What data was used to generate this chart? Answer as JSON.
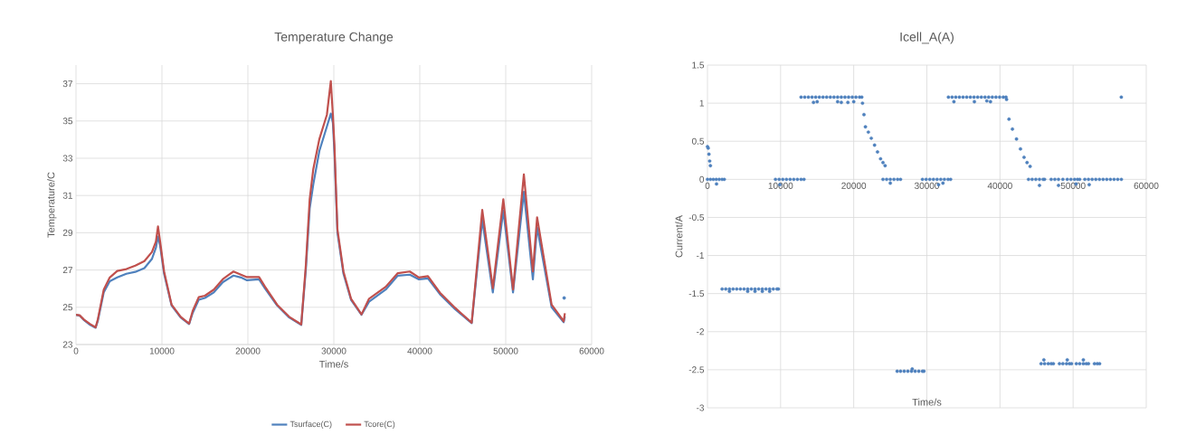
{
  "chart_data": [
    {
      "type": "line",
      "title": "Temperature Change",
      "xlabel": "Time/s",
      "ylabel": "Temperature/C",
      "xlim": [
        0,
        60000
      ],
      "ylim": [
        23,
        38
      ],
      "xticks": [
        0,
        10000,
        20000,
        30000,
        40000,
        50000,
        60000
      ],
      "yticks": [
        23,
        25,
        27,
        29,
        31,
        33,
        35,
        37
      ],
      "grid": true,
      "legend": "bottom",
      "marker": "none",
      "line_style": "solid",
      "series": [
        {
          "name": "Tsurface(C)",
          "color": "#4f81bd",
          "x": [
            0,
            420,
            950,
            1650,
            2280,
            2530,
            3230,
            3930,
            4800,
            5860,
            6900,
            7960,
            8840,
            9300,
            9540,
            9790,
            10250,
            11120,
            12180,
            13160,
            13580,
            14280,
            15000,
            16040,
            17090,
            18320,
            19190,
            19890,
            21300,
            22000,
            23400,
            24810,
            26210,
            26740,
            27190,
            27610,
            28320,
            29190,
            29650,
            29890,
            30070,
            30420,
            31120,
            32000,
            33220,
            34100,
            36040,
            37440,
            38840,
            39900,
            40950,
            42350,
            44110,
            46040,
            47270,
            48500,
            49720,
            50850,
            52110,
            53160,
            53650,
            55340,
            56740,
            56880
          ],
          "values": [
            24.6,
            24.55,
            24.3,
            24.05,
            23.9,
            24.25,
            25.8,
            26.4,
            26.6,
            26.8,
            26.9,
            27.1,
            27.6,
            28.2,
            28.8,
            28.3,
            26.8,
            25.1,
            24.45,
            24.1,
            24.7,
            25.4,
            25.5,
            25.8,
            26.35,
            26.7,
            26.6,
            26.45,
            26.5,
            26.0,
            25.1,
            24.45,
            24.05,
            27.0,
            30.3,
            31.6,
            33.4,
            34.7,
            35.4,
            34.9,
            33.3,
            29.0,
            26.8,
            25.4,
            24.6,
            25.3,
            25.95,
            26.7,
            26.75,
            26.5,
            26.55,
            25.7,
            24.9,
            24.15,
            29.7,
            25.8,
            30.2,
            25.8,
            31.2,
            26.5,
            29.3,
            25.0,
            24.2,
            24.5
          ]
        },
        {
          "name": "Tcore(C)",
          "color": "#c0504d",
          "x": [
            0,
            420,
            950,
            1650,
            2280,
            2530,
            3230,
            3930,
            4800,
            5860,
            6900,
            7960,
            8840,
            9300,
            9540,
            9790,
            10250,
            11120,
            12180,
            13160,
            13580,
            14280,
            15000,
            16040,
            17090,
            18320,
            19190,
            19890,
            21300,
            22000,
            23400,
            24810,
            26210,
            26740,
            27190,
            27610,
            28320,
            29190,
            29650,
            29890,
            30070,
            30420,
            31120,
            32000,
            33220,
            34100,
            36040,
            37440,
            38840,
            39900,
            40950,
            42350,
            44110,
            46040,
            47270,
            48500,
            49720,
            50850,
            52110,
            53160,
            53650,
            55340,
            56740,
            56880
          ],
          "values": [
            24.6,
            24.57,
            24.33,
            24.1,
            23.92,
            24.33,
            25.95,
            26.6,
            26.95,
            27.05,
            27.24,
            27.48,
            27.97,
            28.53,
            29.34,
            28.53,
            26.92,
            25.14,
            24.49,
            24.12,
            24.81,
            25.54,
            25.62,
            25.95,
            26.51,
            26.92,
            26.75,
            26.62,
            26.62,
            26.1,
            25.14,
            24.49,
            24.08,
            27.24,
            30.8,
            32.42,
            34.04,
            35.33,
            37.14,
            35.33,
            33.71,
            29.18,
            26.92,
            25.46,
            24.62,
            25.46,
            26.1,
            26.83,
            26.92,
            26.6,
            26.67,
            25.78,
            24.97,
            24.17,
            30.23,
            26.03,
            30.8,
            25.95,
            32.13,
            26.92,
            29.83,
            25.14,
            24.25,
            24.68
          ]
        },
        {
          "type": "scatter",
          "color": "#4f81bd",
          "x": [
            56800
          ],
          "values": [
            25.5
          ]
        }
      ]
    },
    {
      "type": "scatter",
      "title": "Icell_A(A)",
      "xlabel": "Time/s",
      "ylabel": "Current/A",
      "xlim": [
        0,
        60000
      ],
      "ylim": [
        -3,
        1.5
      ],
      "xticks": [
        0,
        10000,
        20000,
        30000,
        40000,
        50000,
        60000
      ],
      "yticks": [
        -3,
        -2.5,
        -2,
        -1.5,
        -1,
        -0.5,
        0,
        0.5,
        1,
        1.5
      ],
      "grid": true,
      "marker": "circle",
      "series": [
        {
          "color": "#4f81bd",
          "x": [
            0,
            100,
            200,
            300,
            400,
            0,
            400,
            800,
            1200,
            1600,
            2000,
            2300,
            1240,
            2000,
            2500,
            3000,
            3500,
            4000,
            4500,
            5000,
            5500,
            6000,
            6500,
            7000,
            7500,
            8000,
            8500,
            9000,
            9500,
            9700,
            3000,
            5500,
            6500,
            7500,
            8500,
            9300,
            9800,
            10300,
            10800,
            11300,
            11800,
            12300,
            12800,
            13200,
            9900,
            12800,
            13300,
            13800,
            14300,
            14800,
            15300,
            15800,
            16300,
            16800,
            17300,
            17800,
            18300,
            18800,
            19300,
            19800,
            20300,
            20800,
            21100,
            14500,
            15000,
            17800,
            18300,
            19200,
            20000,
            21200,
            21400,
            21600,
            22000,
            22400,
            22850,
            23250,
            23670,
            24000,
            24290,
            24000,
            24500,
            25000,
            25500,
            26000,
            26400,
            25000,
            25940,
            26400,
            26900,
            27400,
            27900,
            28400,
            28900,
            29400,
            29600,
            28000,
            29400,
            29900,
            30400,
            30900,
            31400,
            31900,
            32400,
            32900,
            33250,
            31600,
            32200,
            32950,
            33450,
            33950,
            34450,
            34950,
            35450,
            35950,
            36450,
            36950,
            37450,
            37950,
            38450,
            38950,
            39450,
            39950,
            40450,
            40820,
            33700,
            36500,
            38200,
            38700,
            40900,
            41230,
            41700,
            42260,
            42800,
            43290,
            43700,
            44120,
            43900,
            44400,
            44900,
            45400,
            45900,
            46100,
            47000,
            47500,
            48000,
            48600,
            49200,
            49700,
            50200,
            50600,
            50900,
            51600,
            52100,
            52600,
            53100,
            53600,
            54100,
            54600,
            55100,
            55600,
            56100,
            56600,
            45400,
            48000,
            50400,
            52200,
            56590,
            45620,
            46100,
            46600,
            47000,
            47300,
            48130,
            48600,
            49100,
            49500,
            49780,
            50440,
            50900,
            51400,
            51800,
            52100,
            52920,
            53300,
            53620,
            46000,
            49200,
            51400
          ],
          "values": [
            0.43,
            0.41,
            0.33,
            0.24,
            0.18,
            0,
            0,
            0,
            0,
            0,
            0,
            0,
            -0.06,
            -1.44,
            -1.44,
            -1.44,
            -1.44,
            -1.44,
            -1.44,
            -1.44,
            -1.44,
            -1.44,
            -1.44,
            -1.44,
            -1.44,
            -1.44,
            -1.44,
            -1.44,
            -1.44,
            -1.44,
            -1.47,
            -1.47,
            -1.47,
            -1.47,
            -1.47,
            0,
            0,
            0,
            0,
            0,
            0,
            0,
            0,
            0,
            -0.07,
            1.08,
            1.08,
            1.08,
            1.08,
            1.08,
            1.08,
            1.08,
            1.08,
            1.08,
            1.08,
            1.08,
            1.08,
            1.08,
            1.08,
            1.08,
            1.08,
            1.08,
            1.08,
            1.01,
            1.02,
            1.02,
            1.01,
            1.01,
            1.02,
            1.0,
            0.85,
            0.69,
            0.62,
            0.54,
            0.45,
            0.36,
            0.27,
            0.22,
            0.18,
            0,
            0,
            0,
            0,
            0,
            0,
            -0.05,
            -2.52,
            -2.52,
            -2.52,
            -2.52,
            -2.52,
            -2.52,
            -2.52,
            -2.52,
            -2.52,
            -2.49,
            0,
            0,
            0,
            0,
            0,
            0,
            0,
            0,
            0,
            -0.07,
            -0.05,
            1.08,
            1.08,
            1.08,
            1.08,
            1.08,
            1.08,
            1.08,
            1.08,
            1.08,
            1.08,
            1.08,
            1.08,
            1.08,
            1.08,
            1.08,
            1.08,
            1.08,
            1.02,
            1.02,
            1.03,
            1.02,
            1.05,
            0.79,
            0.66,
            0.53,
            0.4,
            0.29,
            0.22,
            0.17,
            0,
            0,
            0,
            0,
            0,
            0,
            0,
            0,
            0,
            0,
            0,
            0,
            0,
            0,
            0,
            0,
            0,
            0,
            0,
            0,
            0,
            0,
            0,
            0,
            0,
            0,
            -0.08,
            -0.08,
            -0.06,
            -0.07,
            1.08,
            -2.42,
            -2.42,
            -2.42,
            -2.42,
            -2.42,
            -2.42,
            -2.42,
            -2.42,
            -2.42,
            -2.42,
            -2.42,
            -2.42,
            -2.42,
            -2.42,
            -2.42,
            -2.42,
            -2.42,
            -2.42,
            -2.37,
            -2.37,
            -2.37
          ]
        }
      ]
    }
  ]
}
